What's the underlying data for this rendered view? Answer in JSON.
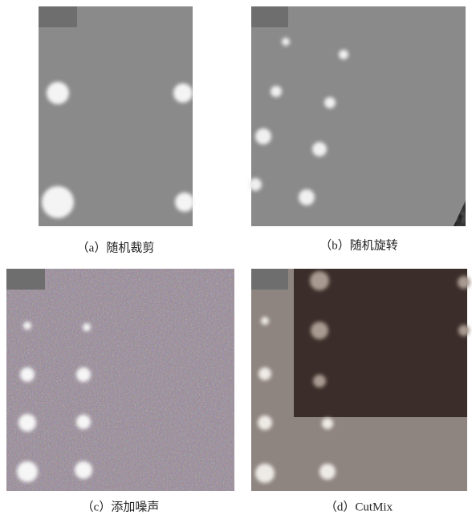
{
  "figure": {
    "captions": [
      "（a）随机裁剪",
      "（b）随机旋转",
      "（c）添加噪声",
      "（d）CutMix"
    ]
  }
}
